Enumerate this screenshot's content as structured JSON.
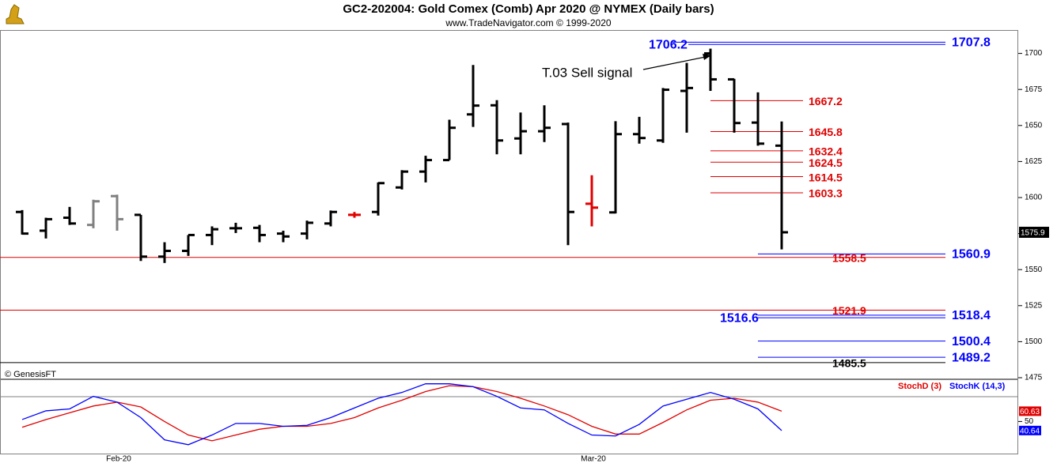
{
  "chart_data": [
    {
      "type": "ohlc",
      "title": "GC2-202004:  Gold Comex (Comb) Apr 2020 @ NYMEX  (Daily bars)",
      "subtitle": "www.TradeNavigator.com © 1999-2020",
      "source": "© GenesisFT",
      "annotation": "T.03 Sell signal",
      "categories": [
        null,
        null,
        null,
        null,
        "Feb-20",
        null,
        null,
        null,
        null,
        null,
        null,
        null,
        null,
        null,
        null,
        null,
        null,
        null,
        null,
        null,
        null,
        null,
        null,
        null,
        "Mar-20",
        null,
        null,
        null,
        null,
        null,
        null,
        null,
        null
      ],
      "open": [
        1590,
        1577,
        1586,
        1581,
        1601,
        1588,
        1559,
        1563,
        1574,
        1578.7,
        1579,
        1575,
        1575,
        1582,
        1588,
        1590,
        1607,
        1618,
        1626,
        1657.7,
        1664,
        1641,
        1646,
        1651,
        1595.7,
        1589.7,
        1644,
        1639.6,
        1674,
        1700,
        1682,
        1652,
        1636
      ],
      "high": [
        1591.3,
        1586,
        1593.5,
        1598.5,
        1602,
        1588,
        1569,
        1574,
        1580,
        1582.5,
        1581,
        1577,
        1584,
        1591,
        1590,
        1610.5,
        1619,
        1629,
        1654,
        1692,
        1667.6,
        1659,
        1664,
        1652,
        1615.5,
        1653,
        1656,
        1676,
        1693.4,
        1703.3,
        1682.4,
        1673,
        1652.8
      ],
      "low": [
        1574.3,
        1571.6,
        1581,
        1578.7,
        1577,
        1556,
        1554.6,
        1559.5,
        1567,
        1575.4,
        1569,
        1569,
        1571,
        1580,
        1586,
        1587.5,
        1605.6,
        1610.5,
        1626,
        1649,
        1630,
        1630,
        1638.5,
        1567,
        1580,
        1589,
        1637.4,
        1638,
        1645,
        1674,
        1645,
        1636,
        1564
      ],
      "close": [
        1575,
        1585,
        1582,
        1597.4,
        1585,
        1559,
        1563,
        1574,
        1578,
        1578.7,
        1574,
        1573,
        1582.5,
        1590,
        1588,
        1610,
        1618,
        1626,
        1648.4,
        1663.8,
        1639.6,
        1646,
        1648.4,
        1590,
        1593,
        1644,
        1641.3,
        1674.8,
        1676,
        1682,
        1651.7,
        1637.4,
        1575.9
      ],
      "bar_colors": [
        "#000000",
        "#000000",
        "#000000",
        "#808080",
        "#808080",
        "#000000",
        "#000000",
        "#000000",
        "#000000",
        "#000000",
        "#000000",
        "#000000",
        "#000000",
        "#000000",
        "#e00000",
        "#000000",
        "#000000",
        "#000000",
        "#000000",
        "#000000",
        "#000000",
        "#000000",
        "#000000",
        "#000000",
        "#e00000",
        "#000000",
        "#000000",
        "#000000",
        "#000000",
        "#000000",
        "#000000",
        "#000000",
        "#000000"
      ],
      "levels": [
        {
          "value": 1707.8,
          "color": "#0000ff"
        },
        {
          "value": 1706.2,
          "color": "#0000ff"
        },
        {
          "value": 1667.2,
          "color": "#e00000"
        },
        {
          "value": 1645.8,
          "color": "#e00000"
        },
        {
          "value": 1632.4,
          "color": "#e00000"
        },
        {
          "value": 1624.5,
          "color": "#e00000"
        },
        {
          "value": 1614.5,
          "color": "#e00000"
        },
        {
          "value": 1603.3,
          "color": "#e00000"
        },
        {
          "value": 1560.9,
          "color": "#0000ff"
        },
        {
          "value": 1558.5,
          "color": "#e00000"
        },
        {
          "value": 1521.9,
          "color": "#e00000"
        },
        {
          "value": 1518.4,
          "color": "#0000ff"
        },
        {
          "value": 1516.6,
          "color": "#0000ff"
        },
        {
          "value": 1500.4,
          "color": "#0000ff"
        },
        {
          "value": 1489.2,
          "color": "#0000ff"
        },
        {
          "value": 1485.5,
          "color": "#000000"
        }
      ],
      "ylim": [
        1475,
        1725
      ],
      "yticks": [
        1475,
        1500,
        1525,
        1550,
        1575,
        1600,
        1625,
        1650,
        1675,
        1700
      ]
    },
    {
      "type": "line",
      "series": [
        {
          "name": "StochD (3)",
          "color": "#e00000",
          "values": [
            44,
            52,
            59,
            66,
            70,
            65,
            50,
            36,
            30,
            36,
            42,
            45,
            45,
            48,
            54,
            64,
            72,
            81,
            87,
            86,
            81,
            74,
            66,
            57,
            45,
            37,
            37,
            49,
            62,
            72,
            74,
            70,
            60.63
          ]
        },
        {
          "name": "StochK (14,3)",
          "color": "#0000ff",
          "values": [
            52,
            61,
            63,
            76,
            70,
            54,
            31,
            26,
            36,
            48,
            48,
            45,
            46,
            54,
            64,
            74,
            80,
            89,
            89,
            86,
            76,
            64,
            62,
            48,
            36,
            35,
            47,
            66,
            73,
            80,
            73,
            63,
            40.64
          ]
        }
      ],
      "ylim": [
        16,
        92
      ],
      "yticks": [
        50
      ]
    }
  ]
}
